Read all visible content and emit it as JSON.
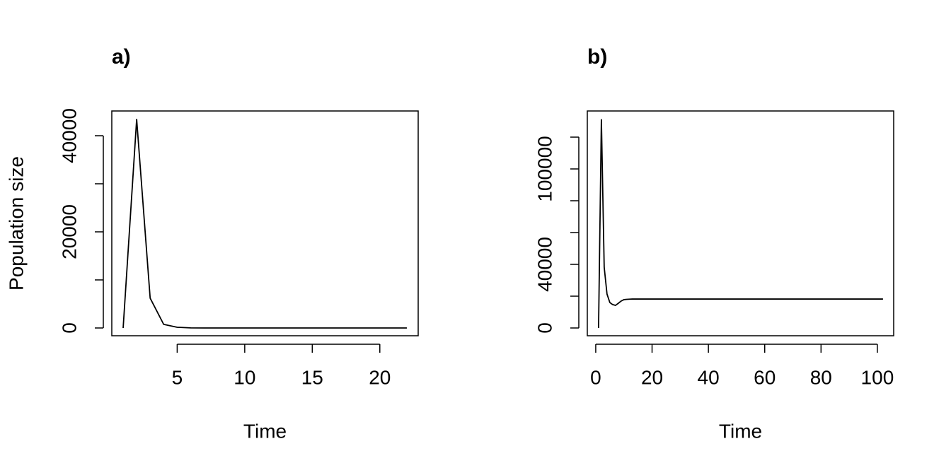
{
  "chart_data": [
    {
      "type": "line",
      "title": "a)",
      "xlabel": "Time",
      "ylabel": "Population size",
      "color": "#000000",
      "x": [
        1,
        2,
        3,
        4,
        5,
        6,
        7,
        8,
        9,
        10,
        11,
        12,
        13,
        14,
        15,
        16,
        17,
        18,
        19,
        20,
        21,
        22
      ],
      "values": [
        0,
        43400,
        6200,
        750,
        150,
        20,
        3,
        0,
        0,
        0,
        0,
        0,
        0,
        0,
        0,
        0,
        0,
        0,
        0,
        0,
        0,
        0
      ],
      "xlim": [
        0.16,
        22.84
      ],
      "ylim": [
        -1618,
        45147
      ],
      "xticks": [
        5,
        10,
        15,
        20
      ],
      "yticks": [
        0,
        10000,
        20000,
        30000,
        40000
      ]
    },
    {
      "type": "line",
      "title": "b)",
      "xlabel": "Time",
      "color": "#000000",
      "x": [
        1,
        2,
        3,
        4,
        5,
        6,
        7,
        8,
        9,
        10,
        11,
        12,
        13,
        14,
        15,
        16,
        17,
        18,
        19,
        20,
        21,
        22,
        23,
        24,
        25,
        26,
        27,
        28,
        29,
        30,
        31,
        32,
        33,
        34,
        35,
        36,
        37,
        38,
        39,
        40,
        41,
        42,
        43,
        44,
        45,
        46,
        47,
        48,
        49,
        50,
        51,
        52,
        53,
        54,
        55,
        56,
        57,
        58,
        59,
        60,
        61,
        62,
        63,
        64,
        65,
        66,
        67,
        68,
        69,
        70,
        71,
        72,
        73,
        74,
        75,
        76,
        77,
        78,
        79,
        80,
        81,
        82,
        83,
        84,
        85,
        86,
        87,
        88,
        89,
        90,
        91,
        92,
        93,
        94,
        95,
        96,
        97,
        98,
        99,
        100,
        101,
        102
      ],
      "values": [
        0,
        131000,
        38200,
        21300,
        16000,
        14700,
        14200,
        15500,
        16900,
        17800,
        18000,
        18100,
        18200,
        18200,
        18200,
        18200,
        18200,
        18200,
        18200,
        18200,
        18200,
        18200,
        18200,
        18200,
        18200,
        18200,
        18200,
        18200,
        18200,
        18200,
        18200,
        18200,
        18200,
        18200,
        18200,
        18200,
        18200,
        18200,
        18200,
        18200,
        18200,
        18200,
        18200,
        18200,
        18200,
        18200,
        18200,
        18200,
        18200,
        18200,
        18200,
        18200,
        18200,
        18200,
        18200,
        18200,
        18200,
        18200,
        18200,
        18200,
        18200,
        18200,
        18200,
        18200,
        18200,
        18200,
        18200,
        18200,
        18200,
        18200,
        18200,
        18200,
        18200,
        18200,
        18200,
        18200,
        18200,
        18200,
        18200,
        18200,
        18200,
        18200,
        18200,
        18200,
        18200,
        18200,
        18200,
        18200,
        18200,
        18200,
        18200,
        18200,
        18200,
        18200,
        18200,
        18200,
        18200,
        18200,
        18200,
        18200,
        18200,
        18200
      ],
      "xlim": [
        -3.0,
        105.8
      ],
      "ylim": [
        -4889,
        136444
      ],
      "xticks": [
        0,
        20,
        40,
        60,
        80,
        100
      ],
      "yticks": [
        0,
        20000,
        40000,
        60000,
        80000,
        100000,
        120000
      ]
    }
  ]
}
